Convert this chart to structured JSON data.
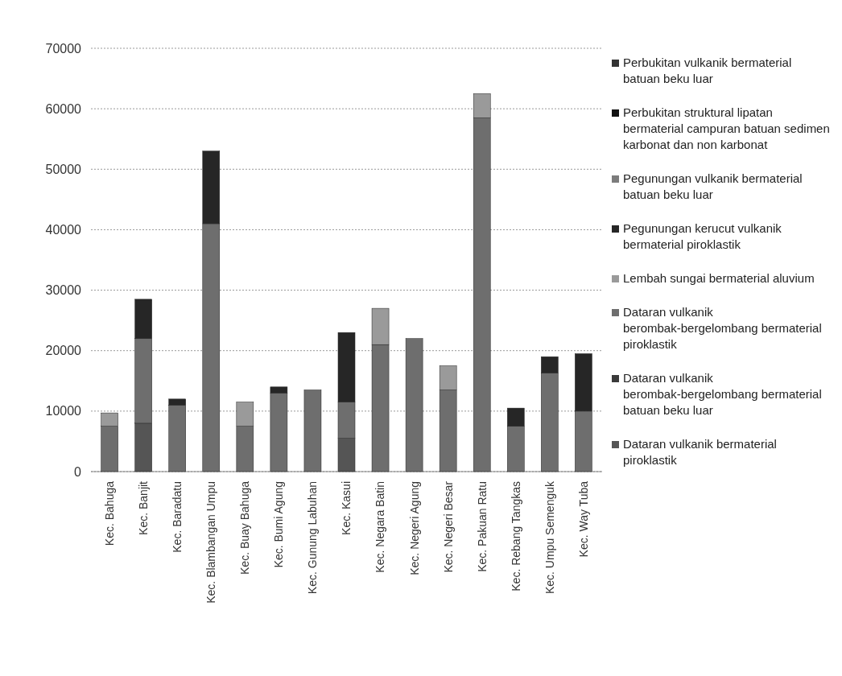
{
  "chart_data": {
    "type": "bar",
    "stacked": true,
    "categories": [
      "Kec. Bahuga",
      "Kec. Banjit",
      "Kec. Baradatu",
      "Kec. Blambangan Umpu",
      "Kec. Buay Bahuga",
      "Kec. Bumi Agung",
      "Kec. Gunung Labuhan",
      "Kec. Kasui",
      "Kec. Negara Batin",
      "Kec. Negeri Agung",
      "Kec. Negeri Besar",
      "Kec. Pakuan Ratu",
      "Kec. Rebang Tangkas",
      "Kec. Umpu Semenguk",
      "Kec. Way Tuba"
    ],
    "series": [
      {
        "name": "Dataran vulkanik bermaterial piroklastik",
        "color": "#555555",
        "values": [
          0,
          8000,
          0,
          0,
          0,
          0,
          0,
          5500,
          0,
          0,
          0,
          0,
          0,
          0,
          0
        ]
      },
      {
        "name": "Dataran vulkanik berombak-bergelombang bermaterial batuan beku luar",
        "color": "#3a3a3a",
        "values": [
          0,
          0,
          0,
          0,
          0,
          0,
          0,
          0,
          0,
          0,
          0,
          0,
          0,
          0,
          0
        ]
      },
      {
        "name": "Dataran vulkanik berombak-bergelombang bermaterial piroklastik",
        "color": "#6e6e6e",
        "values": [
          7500,
          14000,
          11000,
          41000,
          7500,
          13000,
          13500,
          6000,
          21000,
          22000,
          13500,
          58500,
          7500,
          16300,
          10000
        ]
      },
      {
        "name": "Lembah sungai bermaterial aluvium",
        "color": "#9a9a9a",
        "values": [
          2200,
          0,
          0,
          0,
          4000,
          0,
          0,
          0,
          6000,
          0,
          4000,
          4000,
          0,
          0,
          0
        ]
      },
      {
        "name": "Pegunungan kerucut vulkanik bermaterial piroklastik",
        "color": "#262626",
        "values": [
          0,
          6500,
          1000,
          12000,
          0,
          1000,
          0,
          11500,
          0,
          0,
          0,
          0,
          3000,
          2700,
          9500
        ]
      },
      {
        "name": "Pegunungan vulkanik bermaterial batuan beku luar",
        "color": "#7c7c7c",
        "values": [
          0,
          0,
          0,
          0,
          0,
          0,
          0,
          0,
          0,
          0,
          0,
          0,
          0,
          0,
          0
        ]
      },
      {
        "name": "Perbukitan struktural lipatan bermaterial campuran batuan sedimen karbonat dan non karbonat",
        "color": "#111111",
        "values": [
          0,
          0,
          0,
          0,
          0,
          0,
          0,
          0,
          0,
          0,
          0,
          0,
          0,
          0,
          0
        ]
      },
      {
        "name": "Perbukitan vulkanik bermaterial batuan beku luar",
        "color": "#333333",
        "values": [
          0,
          0,
          0,
          0,
          0,
          0,
          0,
          0,
          0,
          0,
          0,
          0,
          0,
          0,
          0
        ]
      }
    ],
    "ylim": [
      0,
      70000
    ],
    "yticks": [
      0,
      10000,
      20000,
      30000,
      40000,
      50000,
      60000,
      70000
    ],
    "grid": "y",
    "legend": "right"
  }
}
